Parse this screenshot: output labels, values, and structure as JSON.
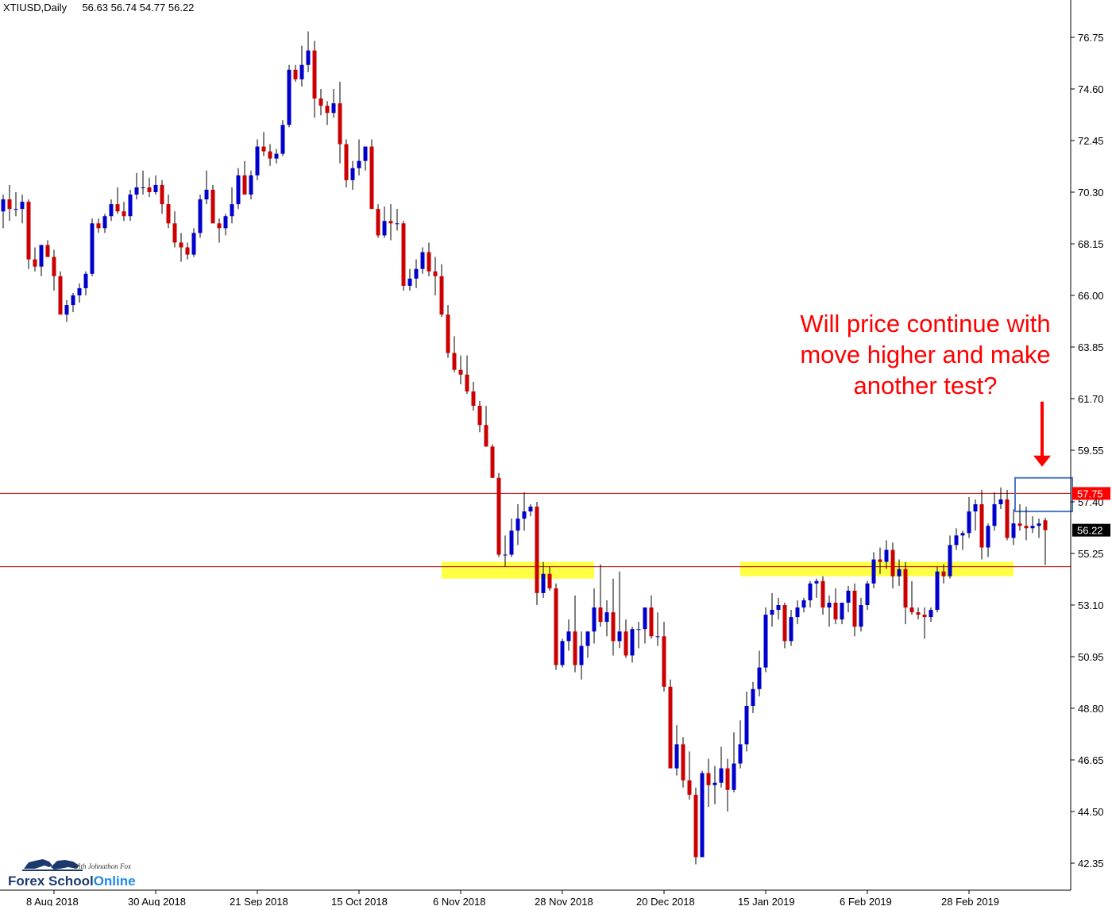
{
  "header": {
    "symbol": "XTIUSD,Daily",
    "ohlc": "56.63 56.74 54.77 56.22"
  },
  "annotation": {
    "lines": [
      "Will price continue with",
      "move higher and make",
      "another test?"
    ]
  },
  "logo": {
    "tagline": "With Johnathon Fox",
    "brand_part1": "Forex School",
    "brand_part2": "Online"
  },
  "colors": {
    "bull": "#0000cc",
    "bear": "#cc0000",
    "wick": "#000000",
    "level_line": "#cc0000",
    "zone": "#ffff44",
    "annotation": "#ff0000",
    "price_tag_resistance": "#ff0000",
    "price_tag_current": "#000000",
    "box": "#4a78c8"
  },
  "chart_data": {
    "type": "candlestick",
    "symbol": "XTIUSD",
    "timeframe": "Daily",
    "ylim": [
      41.6,
      77.8
    ],
    "y_ticks": [
      "76.75",
      "74.60",
      "72.45",
      "70.30",
      "68.15",
      "66.00",
      "63.85",
      "61.70",
      "59.55",
      "57.40",
      "55.25",
      "53.10",
      "50.95",
      "48.80",
      "46.65",
      "44.50",
      "42.35"
    ],
    "x_labels": [
      {
        "label": "8 Aug 2018",
        "index": 8
      },
      {
        "label": "30 Aug 2018",
        "index": 24
      },
      {
        "label": "21 Sep 2018",
        "index": 40
      },
      {
        "label": "15 Oct 2018",
        "index": 56
      },
      {
        "label": "6 Nov 2018",
        "index": 72
      },
      {
        "label": "28 Nov 2018",
        "index": 88
      },
      {
        "label": "20 Dec 2018",
        "index": 104
      },
      {
        "label": "15 Jan 2019",
        "index": 120
      },
      {
        "label": "6 Feb 2019",
        "index": 136
      },
      {
        "label": "28 Feb 2019",
        "index": 152
      }
    ],
    "horizontal_levels": [
      {
        "price": 57.75,
        "label": "57.75",
        "role": "resistance"
      },
      {
        "price": 54.7,
        "role": "support"
      }
    ],
    "current_price": {
      "price": 56.22,
      "label": "56.22"
    },
    "zones": [
      {
        "from_index": 69,
        "to_index": 93,
        "low": 54.2,
        "high": 54.9
      },
      {
        "from_index": 116,
        "to_index": 159,
        "low": 54.3,
        "high": 54.9
      }
    ],
    "projection_box": {
      "from_index": 159,
      "to_index": 168,
      "low": 57.0,
      "high": 58.4
    },
    "candles": [
      [
        69.5,
        70.2,
        68.8,
        70.0
      ],
      [
        70.0,
        70.6,
        69.1,
        69.6
      ],
      [
        69.6,
        70.3,
        69.3,
        69.6
      ],
      [
        69.6,
        70.2,
        69.0,
        69.9
      ],
      [
        69.9,
        70.0,
        67.1,
        67.5
      ],
      [
        67.5,
        68.0,
        67.0,
        67.2
      ],
      [
        67.2,
        68.0,
        66.8,
        68.1
      ],
      [
        68.1,
        68.3,
        67.7,
        67.6
      ],
      [
        67.6,
        67.9,
        66.2,
        66.8
      ],
      [
        66.8,
        67.0,
        65.2,
        65.2
      ],
      [
        65.2,
        65.8,
        64.9,
        65.6
      ],
      [
        65.6,
        66.1,
        65.3,
        66.0
      ],
      [
        66.0,
        66.5,
        65.7,
        66.3
      ],
      [
        66.3,
        67.0,
        66.0,
        66.9
      ],
      [
        66.9,
        69.2,
        66.8,
        69.0
      ],
      [
        69.0,
        69.2,
        68.6,
        68.8
      ],
      [
        68.8,
        69.4,
        68.6,
        69.3
      ],
      [
        69.3,
        70.0,
        69.1,
        69.8
      ],
      [
        69.8,
        70.5,
        69.4,
        69.5
      ],
      [
        69.5,
        69.9,
        69.1,
        69.3
      ],
      [
        69.3,
        70.4,
        69.1,
        70.2
      ],
      [
        70.2,
        71.1,
        70.0,
        70.5
      ],
      [
        70.5,
        71.2,
        70.2,
        70.5
      ],
      [
        70.5,
        70.9,
        70.1,
        70.3
      ],
      [
        70.3,
        71.0,
        70.2,
        70.6
      ],
      [
        70.6,
        70.8,
        69.4,
        69.8
      ],
      [
        69.8,
        70.2,
        68.8,
        69.0
      ],
      [
        69.0,
        69.5,
        68.0,
        68.2
      ],
      [
        68.2,
        68.6,
        67.4,
        68.0
      ],
      [
        68.0,
        68.2,
        67.5,
        67.7
      ],
      [
        67.7,
        68.8,
        67.6,
        68.6
      ],
      [
        68.6,
        70.2,
        68.4,
        70.0
      ],
      [
        70.0,
        71.2,
        69.8,
        70.4
      ],
      [
        70.4,
        70.6,
        69.0,
        69.0
      ],
      [
        69.0,
        69.2,
        68.2,
        68.8
      ],
      [
        68.8,
        69.4,
        68.5,
        69.3
      ],
      [
        69.3,
        70.5,
        69.0,
        69.8
      ],
      [
        69.8,
        71.3,
        69.6,
        71.0
      ],
      [
        71.0,
        71.6,
        70.2,
        70.2
      ],
      [
        70.2,
        71.2,
        70.0,
        71.0
      ],
      [
        71.0,
        72.5,
        70.8,
        72.2
      ],
      [
        72.2,
        72.8,
        71.8,
        72.0
      ],
      [
        72.0,
        72.3,
        71.4,
        71.7
      ],
      [
        71.7,
        72.1,
        71.5,
        71.9
      ],
      [
        71.9,
        73.3,
        71.8,
        73.1
      ],
      [
        73.1,
        75.6,
        73.0,
        75.4
      ],
      [
        75.4,
        75.6,
        74.9,
        75.0
      ],
      [
        75.0,
        76.4,
        74.7,
        75.6
      ],
      [
        75.6,
        77.0,
        75.3,
        76.2
      ],
      [
        76.2,
        76.6,
        73.4,
        74.2
      ],
      [
        74.2,
        74.6,
        73.5,
        73.9
      ],
      [
        73.9,
        74.1,
        73.1,
        73.6
      ],
      [
        73.6,
        74.6,
        73.4,
        74.0
      ],
      [
        74.0,
        74.9,
        71.5,
        72.3
      ],
      [
        72.3,
        72.5,
        70.5,
        70.8
      ],
      [
        70.8,
        71.6,
        70.4,
        71.3
      ],
      [
        71.3,
        72.5,
        71.0,
        71.6
      ],
      [
        71.6,
        72.2,
        71.2,
        72.2
      ],
      [
        72.2,
        72.5,
        69.6,
        69.6
      ],
      [
        69.6,
        69.8,
        68.4,
        68.5
      ],
      [
        68.5,
        69.7,
        68.4,
        69.1
      ],
      [
        69.1,
        69.8,
        68.3,
        69.0
      ],
      [
        69.0,
        69.6,
        68.7,
        69.0
      ],
      [
        69.0,
        69.1,
        66.2,
        66.4
      ],
      [
        66.4,
        67.1,
        66.2,
        66.7
      ],
      [
        66.7,
        67.5,
        66.3,
        67.1
      ],
      [
        67.1,
        68.0,
        66.9,
        67.8
      ],
      [
        67.8,
        68.2,
        66.8,
        67.0
      ],
      [
        67.0,
        67.6,
        66.0,
        66.8
      ],
      [
        66.8,
        67.3,
        65.1,
        65.2
      ],
      [
        65.2,
        65.6,
        63.4,
        63.6
      ],
      [
        63.6,
        64.3,
        62.8,
        62.9
      ],
      [
        62.9,
        63.5,
        62.3,
        62.7
      ],
      [
        62.7,
        63.5,
        61.9,
        62.0
      ],
      [
        62.0,
        62.4,
        61.2,
        61.4
      ],
      [
        61.4,
        61.6,
        60.3,
        60.6
      ],
      [
        60.6,
        61.4,
        59.8,
        59.7
      ],
      [
        59.7,
        59.8,
        58.4,
        58.4
      ],
      [
        58.4,
        58.6,
        55.1,
        55.2
      ],
      [
        55.2,
        56.0,
        54.7,
        55.2
      ],
      [
        55.2,
        56.7,
        55.1,
        56.2
      ],
      [
        56.2,
        57.3,
        55.6,
        56.7
      ],
      [
        56.7,
        57.8,
        56.2,
        57.0
      ],
      [
        57.0,
        57.3,
        56.8,
        57.2
      ],
      [
        57.2,
        57.4,
        53.1,
        53.6
      ],
      [
        53.6,
        54.9,
        53.4,
        54.4
      ],
      [
        54.4,
        54.7,
        53.7,
        53.8
      ],
      [
        53.8,
        54.0,
        50.4,
        50.6
      ],
      [
        50.6,
        51.7,
        50.5,
        51.6
      ],
      [
        51.6,
        52.5,
        51.2,
        52.0
      ],
      [
        52.0,
        53.5,
        50.3,
        50.6
      ],
      [
        50.6,
        52.0,
        50.0,
        51.4
      ],
      [
        51.4,
        52.0,
        50.9,
        52.0
      ],
      [
        52.0,
        53.8,
        51.5,
        53.0
      ],
      [
        53.0,
        54.8,
        52.2,
        52.4
      ],
      [
        52.4,
        53.3,
        51.8,
        52.8
      ],
      [
        52.8,
        54.2,
        51.0,
        51.6
      ],
      [
        51.6,
        54.5,
        51.3,
        52.0
      ],
      [
        52.0,
        52.5,
        50.9,
        51.0
      ],
      [
        51.0,
        52.2,
        50.7,
        52.1
      ],
      [
        52.1,
        52.4,
        51.3,
        52.1
      ],
      [
        52.1,
        53.0,
        51.5,
        53.0
      ],
      [
        53.0,
        53.5,
        51.7,
        51.8
      ],
      [
        51.8,
        52.8,
        51.4,
        51.8
      ],
      [
        51.8,
        52.4,
        49.5,
        49.7
      ],
      [
        49.7,
        50.0,
        46.3,
        46.3
      ],
      [
        46.3,
        48.1,
        46.0,
        47.3
      ],
      [
        47.3,
        47.6,
        45.5,
        45.8
      ],
      [
        45.8,
        47.0,
        45.0,
        45.2
      ],
      [
        45.2,
        45.5,
        42.3,
        42.6
      ],
      [
        42.6,
        46.2,
        42.6,
        46.1
      ],
      [
        46.1,
        46.7,
        44.7,
        45.6
      ],
      [
        45.6,
        46.4,
        44.8,
        45.7
      ],
      [
        45.7,
        47.2,
        45.5,
        46.3
      ],
      [
        46.3,
        46.7,
        44.5,
        45.4
      ],
      [
        45.4,
        47.8,
        45.3,
        46.5
      ],
      [
        46.5,
        48.3,
        46.3,
        47.3
      ],
      [
        47.3,
        49.5,
        47.0,
        48.9
      ],
      [
        48.9,
        49.9,
        48.6,
        49.6
      ],
      [
        49.6,
        51.2,
        49.3,
        50.5
      ],
      [
        50.5,
        53.0,
        50.3,
        52.7
      ],
      [
        52.7,
        53.6,
        52.2,
        52.9
      ],
      [
        52.9,
        53.4,
        52.5,
        53.1
      ],
      [
        53.1,
        53.2,
        51.3,
        51.6
      ],
      [
        51.6,
        52.9,
        51.4,
        52.6
      ],
      [
        52.6,
        53.3,
        52.3,
        53.0
      ],
      [
        53.0,
        53.4,
        52.8,
        53.3
      ],
      [
        53.3,
        54.1,
        53.0,
        54.0
      ],
      [
        54.0,
        54.2,
        53.4,
        54.1
      ],
      [
        54.1,
        54.3,
        52.7,
        53.0
      ],
      [
        53.0,
        53.5,
        52.2,
        53.2
      ],
      [
        53.2,
        53.8,
        52.3,
        52.5
      ],
      [
        52.5,
        53.2,
        52.3,
        53.2
      ],
      [
        53.2,
        53.9,
        52.8,
        53.7
      ],
      [
        53.7,
        54.0,
        51.8,
        52.2
      ],
      [
        52.2,
        53.4,
        52.0,
        53.1
      ],
      [
        53.1,
        54.1,
        52.9,
        54.0
      ],
      [
        54.0,
        55.3,
        53.8,
        55.0
      ],
      [
        55.0,
        55.5,
        54.4,
        54.9
      ],
      [
        54.9,
        55.8,
        54.6,
        55.4
      ],
      [
        55.4,
        55.7,
        53.8,
        54.3
      ],
      [
        54.3,
        55.0,
        53.9,
        54.6
      ],
      [
        54.6,
        54.9,
        52.3,
        53.0
      ],
      [
        53.0,
        54.1,
        52.7,
        52.8
      ],
      [
        52.8,
        53.0,
        52.5,
        52.7
      ],
      [
        52.7,
        53.0,
        51.7,
        52.6
      ],
      [
        52.6,
        53.0,
        52.4,
        52.9
      ],
      [
        52.9,
        54.7,
        52.8,
        54.5
      ],
      [
        54.5,
        54.8,
        54.0,
        54.3
      ],
      [
        54.3,
        56.0,
        54.2,
        55.6
      ],
      [
        55.6,
        56.3,
        55.4,
        56.0
      ],
      [
        56.0,
        56.2,
        55.4,
        56.1
      ],
      [
        56.1,
        57.6,
        55.9,
        57.0
      ],
      [
        57.0,
        57.5,
        56.2,
        57.3
      ],
      [
        57.3,
        57.9,
        55.0,
        55.5
      ],
      [
        55.5,
        56.5,
        55.1,
        56.4
      ],
      [
        56.4,
        57.8,
        56.2,
        57.3
      ],
      [
        57.3,
        58.0,
        57.1,
        57.5
      ],
      [
        57.5,
        57.9,
        55.8,
        55.9
      ],
      [
        55.9,
        57.1,
        55.6,
        56.5
      ],
      [
        56.5,
        57.3,
        56.2,
        56.4
      ],
      [
        56.4,
        57.2,
        55.8,
        56.3
      ],
      [
        56.3,
        56.8,
        56.1,
        56.4
      ],
      [
        56.4,
        56.7,
        55.9,
        56.5
      ],
      [
        56.63,
        56.74,
        54.77,
        56.22
      ]
    ]
  }
}
